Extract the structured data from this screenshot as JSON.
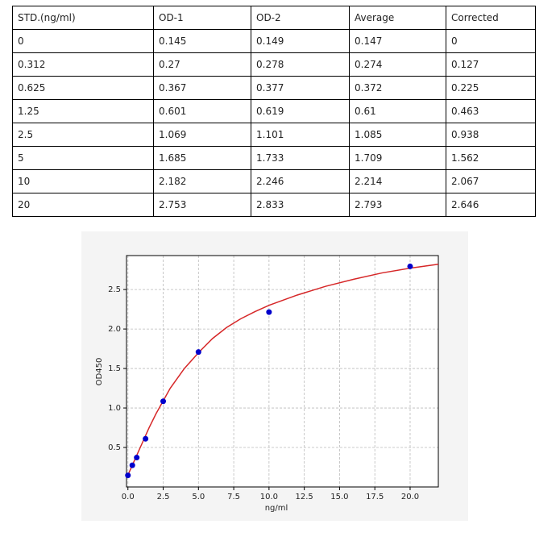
{
  "table": {
    "header": [
      "STD.(ng/ml)",
      "OD-1",
      "OD-2",
      "Average",
      "Corrected"
    ],
    "rows": [
      [
        "0",
        "0.145",
        "0.149",
        "0.147",
        "0"
      ],
      [
        "0.312",
        "0.27",
        "0.278",
        "0.274",
        "0.127"
      ],
      [
        "0.625",
        "0.367",
        "0.377",
        "0.372",
        "0.225"
      ],
      [
        "1.25",
        "0.601",
        "0.619",
        "0.61",
        "0.463"
      ],
      [
        "2.5",
        "1.069",
        "1.101",
        "1.085",
        "0.938"
      ],
      [
        "5",
        "1.685",
        "1.733",
        "1.709",
        "1.562"
      ],
      [
        "10",
        "2.182",
        "2.246",
        "2.214",
        "2.067"
      ],
      [
        "20",
        "2.753",
        "2.833",
        "2.793",
        "2.646"
      ]
    ]
  },
  "chart_data": {
    "type": "scatter",
    "x_label": "ng/ml",
    "y_label": "OD450",
    "grid": true,
    "xlim": [
      -0.1,
      22
    ],
    "ylim": [
      0,
      2.93
    ],
    "xticks": [
      {
        "value": 0,
        "label": "0.0"
      },
      {
        "value": 2.5,
        "label": "2.5"
      },
      {
        "value": 5,
        "label": "5.0"
      },
      {
        "value": 7.5,
        "label": "7.5"
      },
      {
        "value": 10,
        "label": "10.0"
      },
      {
        "value": 12.5,
        "label": "12.5"
      },
      {
        "value": 15,
        "label": "15.0"
      },
      {
        "value": 17.5,
        "label": "17.5"
      },
      {
        "value": 20,
        "label": "20.0"
      }
    ],
    "yticks": [
      {
        "value": 0.5,
        "label": "0.5"
      },
      {
        "value": 1,
        "label": "1.0"
      },
      {
        "value": 1.5,
        "label": "1.5"
      },
      {
        "value": 2,
        "label": "2.0"
      },
      {
        "value": 2.5,
        "label": "2.5"
      }
    ],
    "series": [
      {
        "type": "line",
        "color": "#d62728",
        "x": [
          0,
          0.5,
          1,
          1.5,
          2,
          3,
          4,
          5,
          6,
          7,
          8,
          9,
          10,
          12,
          14,
          16,
          18,
          20,
          22
        ],
        "values": [
          0.15,
          0.35,
          0.55,
          0.75,
          0.93,
          1.25,
          1.5,
          1.7,
          1.88,
          2.02,
          2.13,
          2.22,
          2.3,
          2.43,
          2.54,
          2.63,
          2.71,
          2.77,
          2.82
        ]
      },
      {
        "type": "scatter",
        "color": "#0000cc",
        "x": [
          0,
          0.312,
          0.625,
          1.25,
          2.5,
          5,
          10,
          20
        ],
        "values": [
          0.147,
          0.274,
          0.372,
          0.61,
          1.085,
          1.709,
          2.214,
          2.793
        ]
      }
    ]
  }
}
